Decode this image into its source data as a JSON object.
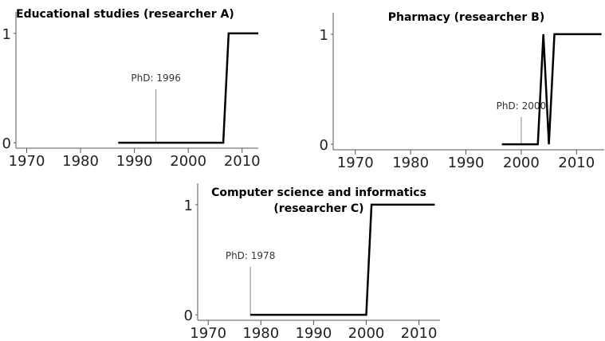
{
  "chart_data": [
    {
      "type": "line",
      "title": "Educational studies (researcher A)",
      "x": [
        1987,
        2006.5,
        2007.5,
        2013
      ],
      "values": [
        0,
        0,
        1,
        1
      ],
      "color": "#000000",
      "xlim": [
        1968,
        2013
      ],
      "xticks": [
        1970,
        1980,
        1990,
        2000,
        2010
      ],
      "ylim": [
        -0.05,
        1.05
      ],
      "yticks": [
        0,
        1
      ],
      "annotation": {
        "text": "PhD: 1996",
        "x": 1994
      }
    },
    {
      "type": "line",
      "title": "Pharmacy (researcher B)",
      "x": [
        1996.5,
        2003,
        2004,
        2005,
        2006,
        2014.5
      ],
      "values": [
        0,
        0,
        1,
        0,
        1,
        1
      ],
      "color": "#000000",
      "xlim": [
        1966,
        2015
      ],
      "xticks": [
        1970,
        1980,
        1990,
        2000,
        2010
      ],
      "ylim": [
        -0.05,
        1.05
      ],
      "yticks": [
        0,
        1
      ],
      "annotation": {
        "text": "PhD: 2000",
        "x": 2000
      }
    },
    {
      "type": "line",
      "title": "Computer science and informatics (researcher C)",
      "x": [
        1978,
        2000,
        2001,
        2013
      ],
      "values": [
        0,
        0,
        1,
        1
      ],
      "color": "#000000",
      "xlim": [
        1968,
        2014
      ],
      "xticks": [
        1970,
        1980,
        1990,
        2000,
        2010
      ],
      "ylim": [
        -0.05,
        1.05
      ],
      "yticks": [
        0,
        1
      ],
      "annotation": {
        "text": "PhD: 1978",
        "x": 1978
      }
    }
  ]
}
